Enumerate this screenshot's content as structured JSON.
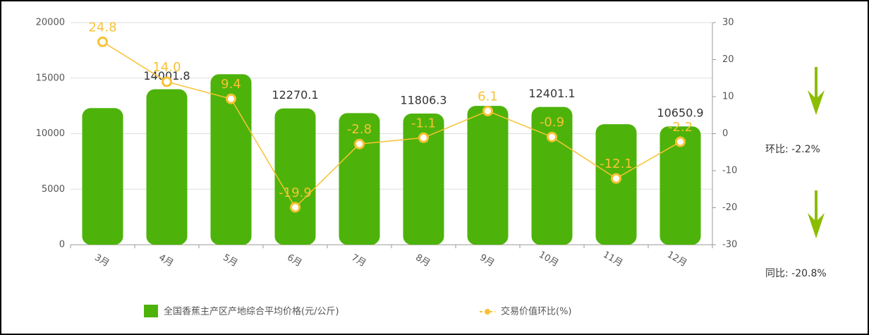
{
  "chart_data": {
    "type": "bar-line",
    "categories": [
      "3月",
      "4月",
      "5月",
      "6月",
      "7月",
      "8月",
      "9月",
      "10月",
      "11月",
      "12月"
    ],
    "series": [
      {
        "name": "全国香蕉主产区产地综合平均价格(元/公斤)",
        "type": "bar",
        "color": "#4db30a",
        "values": [
          12300,
          14001.8,
          15350,
          12270.1,
          11850,
          11806.3,
          12500,
          12401.1,
          10850,
          10650.9
        ],
        "value_labels": [
          null,
          "14001.8",
          null,
          "12270.1",
          null,
          "11806.3",
          null,
          "12401.1",
          null,
          "10650.9"
        ]
      },
      {
        "name": "交易价值环比(%)",
        "type": "line",
        "axis": "y2",
        "color": "#f7c234",
        "values": [
          24.8,
          14.0,
          9.4,
          -19.9,
          -2.8,
          -1.1,
          6.1,
          -0.9,
          -12.1,
          -2.2
        ],
        "value_labels": [
          "24.8",
          "14.0",
          "9.4",
          "-19.9",
          "-2.8",
          "-1.1",
          "6.1",
          "-0.9",
          "-12.1",
          "-2.2"
        ]
      }
    ],
    "ylim": [
      0,
      20000
    ],
    "yticks": [
      0,
      5000,
      10000,
      15000,
      20000
    ],
    "y2lim": [
      -30,
      30
    ],
    "y2ticks": [
      -30,
      -20,
      -10,
      0,
      10,
      20,
      30
    ],
    "grid": true,
    "annotations": [
      {
        "text": "环比:  -2.2%"
      },
      {
        "text": "同比:  -20.8%"
      }
    ]
  }
}
